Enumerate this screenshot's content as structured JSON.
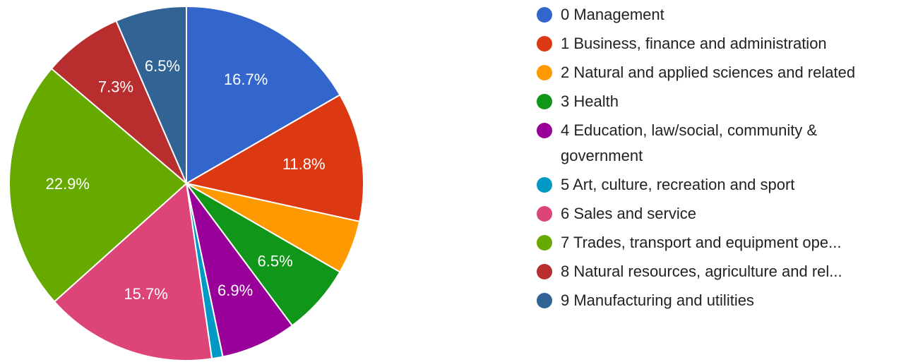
{
  "chart_data": {
    "type": "pie",
    "title": "",
    "slices": [
      {
        "label": "0 Management",
        "value": 16.7,
        "value_label": "16.7%",
        "color": "#3366CC"
      },
      {
        "label": "1 Business, finance and administration",
        "value": 11.8,
        "value_label": "11.8%",
        "color": "#DC3912"
      },
      {
        "label": "2 Natural and applied sciences and related",
        "value": 4.9,
        "value_label": "",
        "color": "#FF9900"
      },
      {
        "label": "3 Health",
        "value": 6.5,
        "value_label": "6.5%",
        "color": "#109618"
      },
      {
        "label": "4 Education, law/social, community & government",
        "value": 6.9,
        "value_label": "6.9%",
        "color": "#990099"
      },
      {
        "label": "5 Art, culture, recreation and sport",
        "value": 1.0,
        "value_label": "",
        "color": "#0099C6"
      },
      {
        "label": "6 Sales and service",
        "value": 15.7,
        "value_label": "15.7%",
        "color": "#DD4477"
      },
      {
        "label": "7 Trades, transport and equipment ope...",
        "value": 22.9,
        "value_label": "22.9%",
        "color": "#66AA00"
      },
      {
        "label": "8 Natural resources, agriculture and rel...",
        "value": 7.3,
        "value_label": "7.3%",
        "color": "#B82E2E"
      },
      {
        "label": "9 Manufacturing and utilities",
        "value": 6.5,
        "value_label": "6.5%",
        "color": "#316395"
      }
    ],
    "legend_position": "right"
  }
}
